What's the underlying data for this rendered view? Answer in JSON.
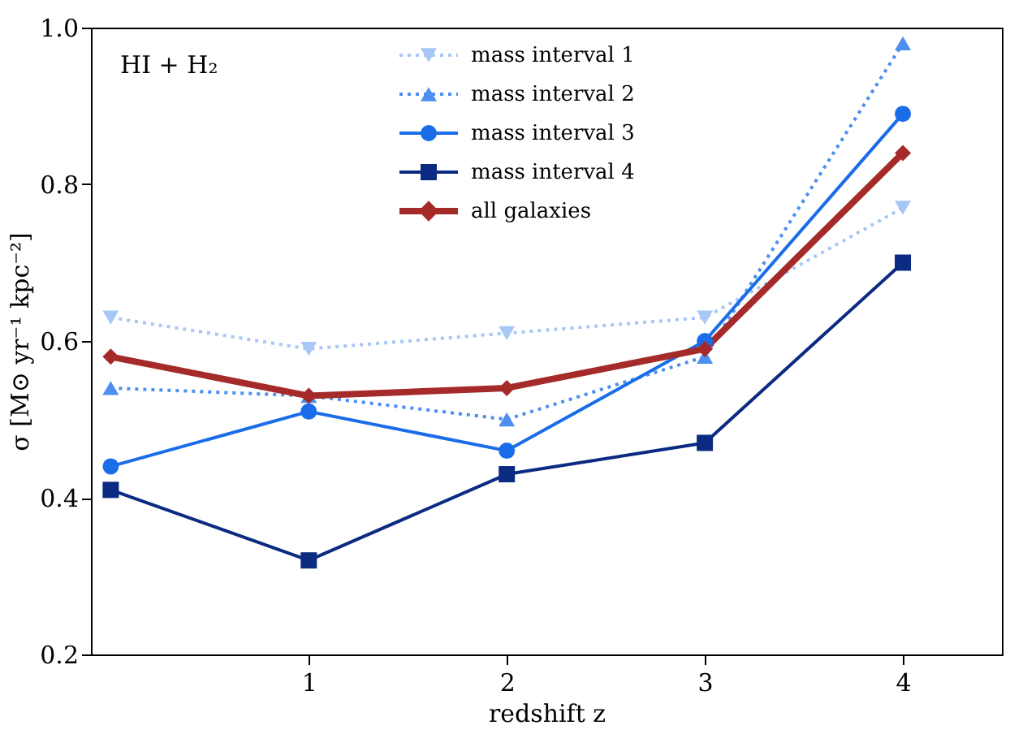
{
  "chart_data": {
    "type": "line",
    "xlabel": "redshift z",
    "ylabel": "σ [M⊙ yr⁻¹ kpc⁻²]",
    "annotations": [
      "HI + H₂"
    ],
    "x": [
      0,
      1,
      2,
      3,
      4
    ],
    "xlim": [
      -0.1,
      4.5
    ],
    "xticks": [
      1,
      2,
      3,
      4
    ],
    "ylim": [
      0.2,
      1.0
    ],
    "yticks": [
      0.2,
      0.4,
      0.6,
      0.8,
      {
        "value": 1.0,
        "label": "1.0"
      }
    ],
    "grid": false,
    "legend": "top",
    "series": [
      {
        "name": "mass interval 1",
        "color": "#a7c7f5",
        "marker": "triangle-down",
        "line_style": "dotted",
        "values": [
          0.63,
          0.59,
          0.61,
          0.63,
          0.77
        ]
      },
      {
        "name": "mass interval 2",
        "color": "#4d8ff0",
        "marker": "triangle",
        "line_style": "dotted",
        "values": [
          0.54,
          0.53,
          0.5,
          0.58,
          0.98
        ]
      },
      {
        "name": "mass interval 3",
        "color": "#1a6de8",
        "marker": "circle",
        "line_style": "solid",
        "values": [
          0.44,
          0.51,
          0.46,
          0.6,
          0.89
        ]
      },
      {
        "name": "mass interval 4",
        "color": "#0b2a82",
        "marker": "square",
        "line_style": "solid",
        "values": [
          0.41,
          0.32,
          0.43,
          0.47,
          0.7
        ]
      },
      {
        "name": "all galaxies",
        "color": "#a52a2a",
        "marker": "diamond",
        "line_style": "solid",
        "values": [
          0.58,
          0.53,
          0.54,
          0.59,
          0.84
        ]
      }
    ]
  }
}
